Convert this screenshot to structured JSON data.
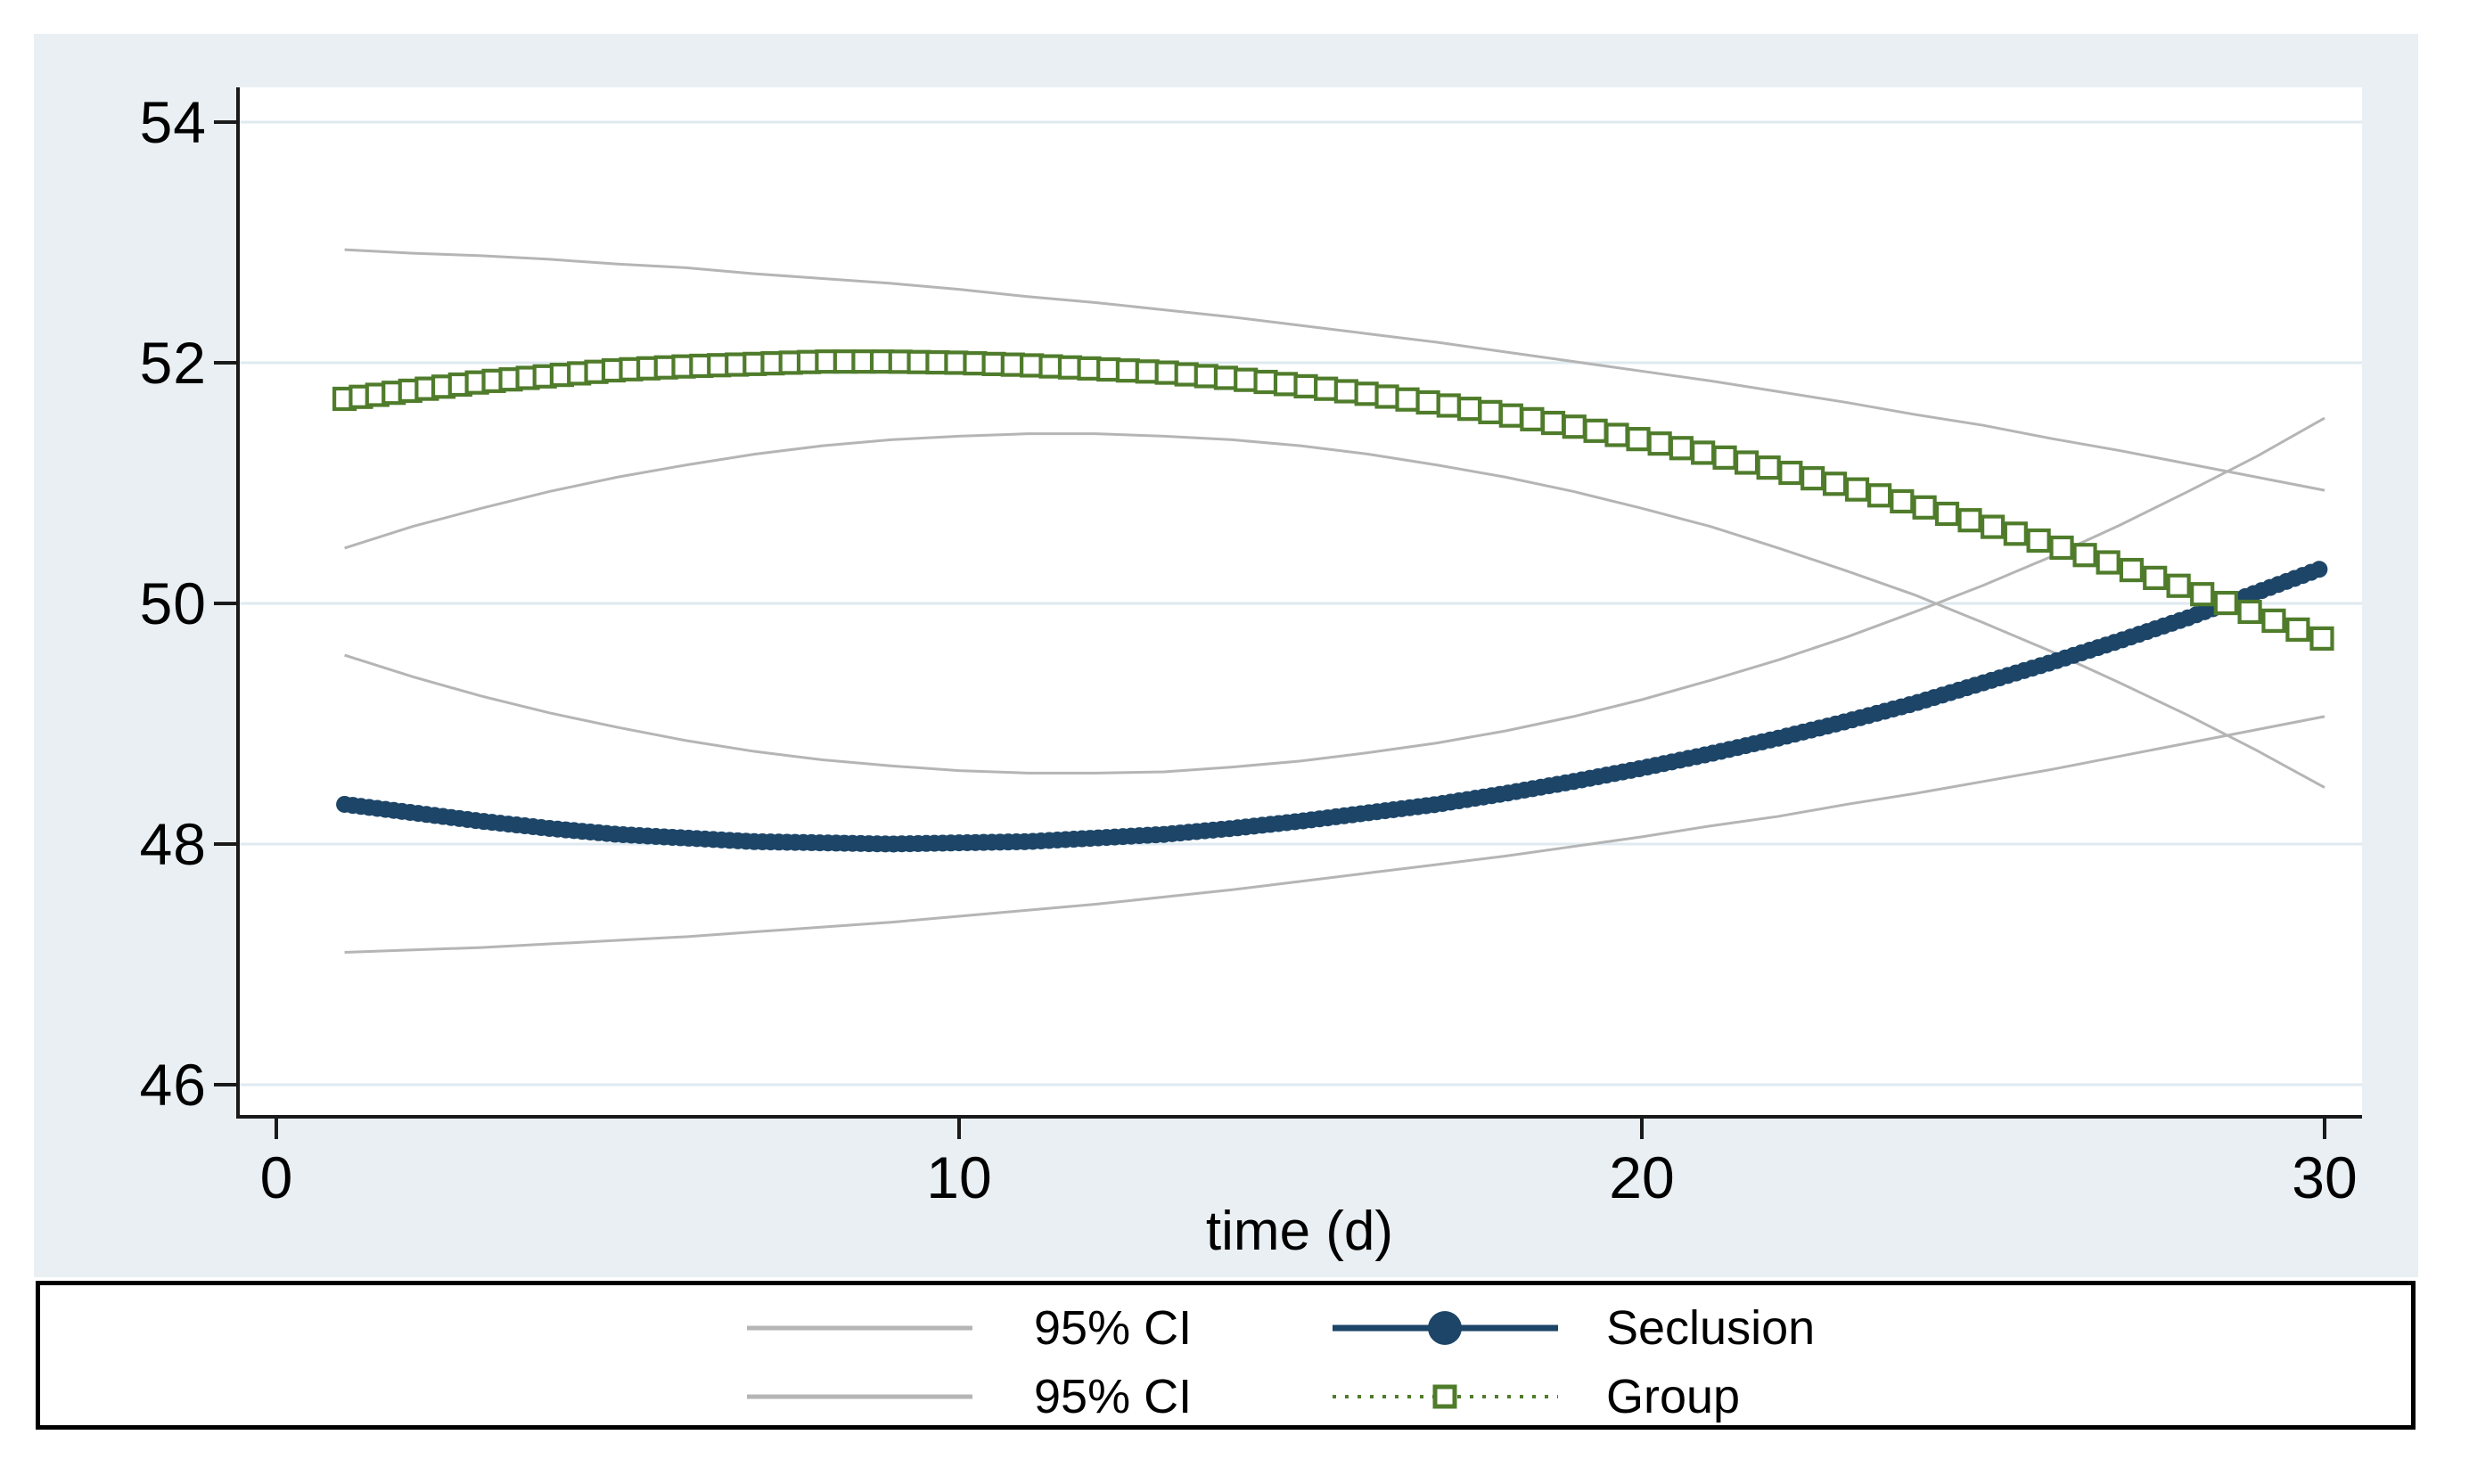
{
  "figure": {
    "page_bg": "#ffffff",
    "panel_bg": "#e9eff2",
    "plot_bg": "#ffffff",
    "grid_color": "#dfeaf0",
    "axis_color": "#1a1a1a"
  },
  "colors": {
    "seclusion": "#1c4568",
    "group": "#4f7c2b",
    "ci": "#b5b5b5"
  },
  "axes": {
    "x": {
      "title": "time (d)",
      "ticks": [
        0,
        10,
        20,
        30
      ],
      "tick_labels": [
        "0",
        "10",
        "20",
        "30"
      ]
    },
    "y": {
      "ticks": [
        54,
        52,
        50,
        48,
        46
      ],
      "tick_labels": [
        "54",
        "52",
        "50",
        "48",
        "46"
      ]
    }
  },
  "legend": {
    "rows": [
      {
        "ci_label": "95% CI",
        "series_label": "Seclusion"
      },
      {
        "ci_label": "95% CI",
        "series_label": "Group"
      }
    ]
  },
  "chart_data": {
    "type": "line",
    "title": "",
    "xlabel": "time (d)",
    "ylabel": "",
    "xlim": [
      -0.6,
      30.6
    ],
    "ylim": [
      45.7,
      54.3
    ],
    "grid": true,
    "legend_position": "bottom",
    "x": [
      1,
      2,
      3,
      4,
      5,
      6,
      7,
      8,
      9,
      10,
      11,
      12,
      13,
      14,
      15,
      16,
      17,
      18,
      19,
      20,
      21,
      22,
      23,
      24,
      25,
      26,
      27,
      28,
      29,
      30
    ],
    "series": [
      {
        "name": "Seclusion",
        "style": "solid-thick-circles",
        "values": [
          48.33,
          48.26,
          48.19,
          48.13,
          48.08,
          48.05,
          48.02,
          48.01,
          48.0,
          48.01,
          48.02,
          48.05,
          48.08,
          48.13,
          48.19,
          48.26,
          48.33,
          48.42,
          48.52,
          48.63,
          48.75,
          48.88,
          49.02,
          49.17,
          49.34,
          49.51,
          49.69,
          49.88,
          50.09,
          50.3
        ]
      },
      {
        "name": "Group",
        "style": "dotted-hollow-squares",
        "values": [
          51.7,
          51.77,
          51.84,
          51.89,
          51.94,
          51.97,
          51.99,
          52.01,
          52.01,
          52.0,
          51.98,
          51.95,
          51.92,
          51.87,
          51.81,
          51.74,
          51.66,
          51.57,
          51.47,
          51.36,
          51.24,
          51.11,
          50.97,
          50.82,
          50.66,
          50.49,
          50.31,
          50.12,
          49.91,
          49.7
        ]
      },
      {
        "name": "Seclusion 95% CI upper",
        "style": "ci-line",
        "values": [
          49.57,
          49.39,
          49.23,
          49.09,
          48.97,
          48.86,
          48.77,
          48.7,
          48.65,
          48.61,
          48.59,
          48.59,
          48.6,
          48.64,
          48.69,
          48.76,
          48.84,
          48.94,
          49.06,
          49.2,
          49.36,
          49.53,
          49.72,
          49.93,
          50.15,
          50.39,
          50.65,
          50.93,
          51.22,
          51.54
        ]
      },
      {
        "name": "Seclusion 95% CI lower",
        "style": "ci-line",
        "values": [
          47.1,
          47.12,
          47.14,
          47.17,
          47.2,
          47.23,
          47.27,
          47.31,
          47.35,
          47.4,
          47.45,
          47.5,
          47.56,
          47.62,
          47.69,
          47.76,
          47.83,
          47.9,
          47.98,
          48.06,
          48.15,
          48.23,
          48.33,
          48.42,
          48.52,
          48.62,
          48.73,
          48.84,
          48.95,
          49.06
        ]
      },
      {
        "name": "Group 95% CI upper",
        "style": "ci-line",
        "values": [
          52.94,
          52.91,
          52.89,
          52.86,
          52.82,
          52.79,
          52.74,
          52.7,
          52.66,
          52.61,
          52.55,
          52.5,
          52.44,
          52.38,
          52.31,
          52.24,
          52.17,
          52.09,
          52.01,
          51.93,
          51.85,
          51.76,
          51.67,
          51.57,
          51.48,
          51.37,
          51.27,
          51.16,
          51.05,
          50.94
        ]
      },
      {
        "name": "Group 95% CI lower",
        "style": "ci-line",
        "values": [
          50.46,
          50.64,
          50.79,
          50.93,
          51.05,
          51.15,
          51.24,
          51.31,
          51.36,
          51.39,
          51.41,
          51.41,
          51.39,
          51.36,
          51.31,
          51.24,
          51.15,
          51.05,
          50.93,
          50.79,
          50.64,
          50.46,
          50.27,
          50.07,
          49.84,
          49.6,
          49.34,
          49.07,
          48.78,
          48.47
        ]
      }
    ]
  }
}
